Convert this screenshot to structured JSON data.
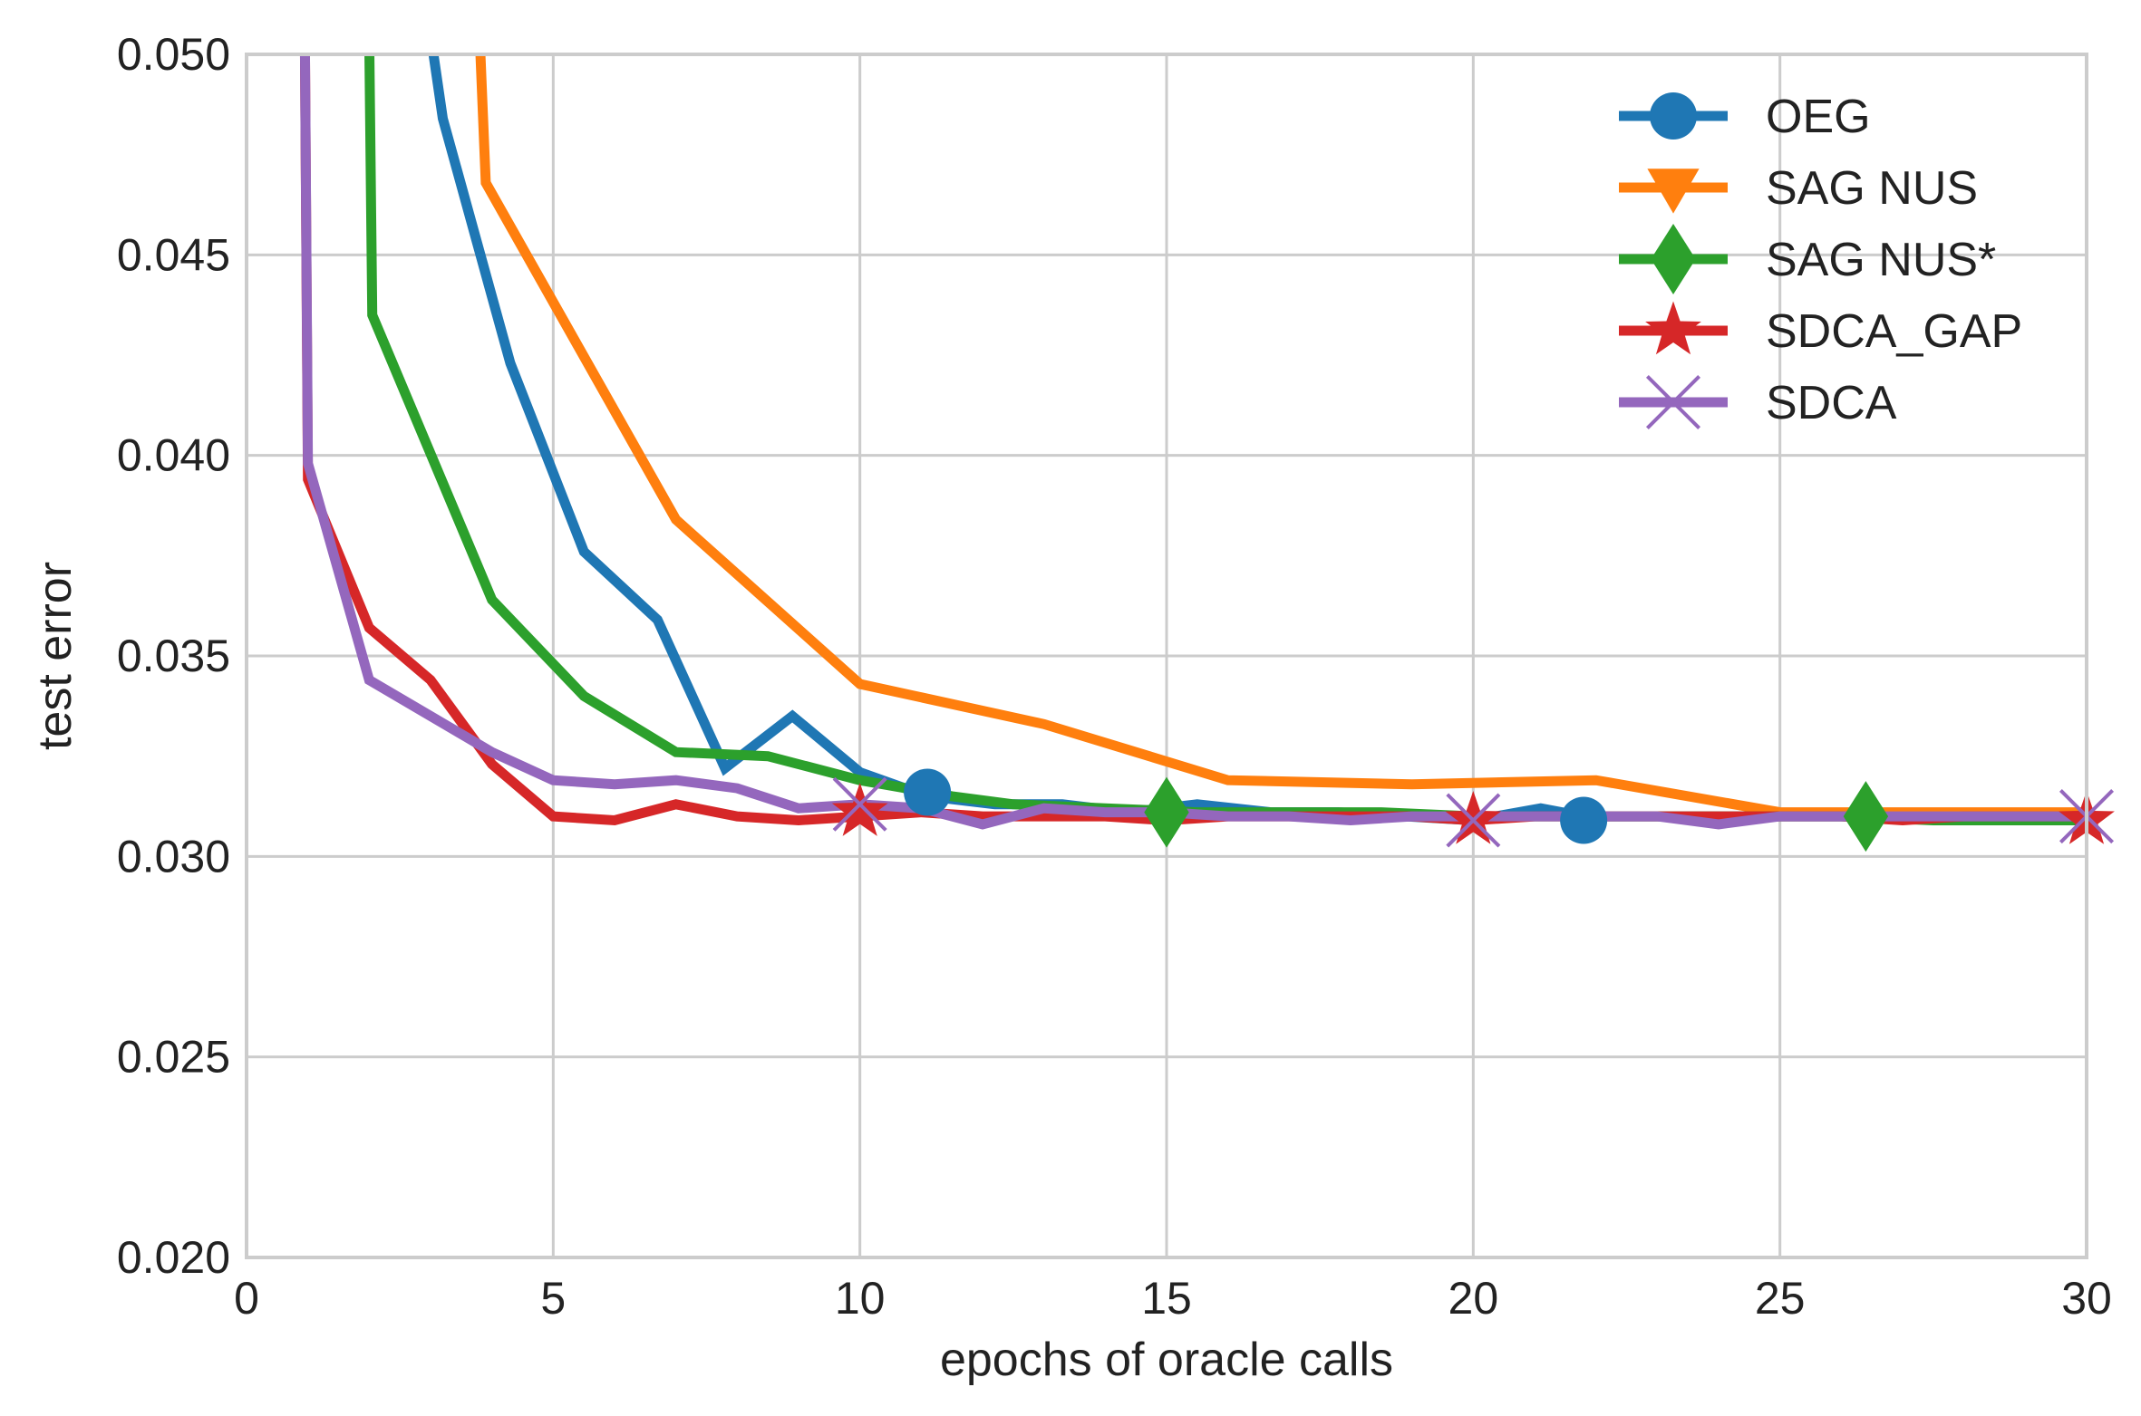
{
  "chart_data": {
    "type": "line",
    "title": "",
    "xlabel": "epochs of oracle calls",
    "ylabel": "test error",
    "xlim": [
      0,
      30
    ],
    "ylim": [
      0.02,
      0.05
    ],
    "xticks": [
      0,
      5,
      10,
      15,
      20,
      25,
      30
    ],
    "yticks": [
      0.02,
      0.025,
      0.03,
      0.035,
      0.04,
      0.045,
      0.05
    ],
    "xtick_labels": [
      "0",
      "5",
      "10",
      "15",
      "20",
      "25",
      "30"
    ],
    "ytick_labels": [
      "0.020",
      "0.025",
      "0.030",
      "0.035",
      "0.040",
      "0.045",
      "0.050"
    ],
    "grid": true,
    "legend_position": "top-right",
    "series": [
      {
        "name": "OEG",
        "color": "#1f77b4",
        "marker": "circle",
        "x": [
          3.0,
          3.2,
          4.3,
          5.5,
          6.7,
          7.8,
          8.9,
          10.0,
          11.1,
          12.2,
          13.3,
          14.4,
          15.5,
          16.7,
          17.8,
          18.9,
          20.0,
          21.1,
          21.8,
          23.3,
          24.4,
          25.5,
          26.6,
          27.7,
          28.8,
          30.0
        ],
        "y": [
          0.0505,
          0.0484,
          0.0423,
          0.0376,
          0.0359,
          0.0322,
          0.0335,
          0.0321,
          0.0315,
          0.0313,
          0.0313,
          0.0311,
          0.0313,
          0.0311,
          0.0311,
          0.031,
          0.0309,
          0.0312,
          0.031,
          0.031,
          0.031,
          0.031,
          0.031,
          0.0309,
          0.0309,
          0.0309
        ],
        "markers_at": [
          [
            11.1,
            0.0316
          ],
          [
            21.8,
            0.0309
          ]
        ]
      },
      {
        "name": "SAG NUS",
        "color": "#ff7f0e",
        "marker": "triangle-down",
        "x": [
          3.8,
          3.9,
          7.0,
          10.0,
          13.0,
          16.0,
          19.0,
          22.0,
          25.0,
          28.0,
          30.0
        ],
        "y": [
          0.0505,
          0.0468,
          0.0384,
          0.0343,
          0.0333,
          0.0319,
          0.0318,
          0.0319,
          0.0311,
          0.0311,
          0.0311
        ],
        "markers_at": []
      },
      {
        "name": "SAG NUS*",
        "color": "#2ca02c",
        "marker": "diamond",
        "x": [
          2.0,
          2.05,
          4.0,
          5.5,
          7.0,
          8.5,
          10.0,
          11.5,
          12.5,
          14.0,
          15.5,
          17.0,
          18.5,
          20.0,
          21.5,
          23.0,
          24.5,
          26.0,
          27.5,
          29.0,
          30.0
        ],
        "y": [
          0.0505,
          0.0435,
          0.0364,
          0.034,
          0.0326,
          0.0325,
          0.0319,
          0.0315,
          0.0313,
          0.0312,
          0.0311,
          0.0311,
          0.0311,
          0.031,
          0.031,
          0.031,
          0.031,
          0.031,
          0.0309,
          0.0309,
          0.0309
        ],
        "markers_at": [
          [
            15.0,
            0.0311
          ],
          [
            26.4,
            0.031
          ]
        ]
      },
      {
        "name": "SDCA_GAP",
        "color": "#d62728",
        "marker": "star",
        "x": [
          0.95,
          1.0,
          2.0,
          3.0,
          4.0,
          5.0,
          6.0,
          7.0,
          8.0,
          9.0,
          10.0,
          11.0,
          12.0,
          13.0,
          14.0,
          15.0,
          16.0,
          17.0,
          18.0,
          19.0,
          20.0,
          21.0,
          22.0,
          23.0,
          24.0,
          25.0,
          26.0,
          27.0,
          28.0,
          29.0,
          30.0
        ],
        "y": [
          0.0505,
          0.0394,
          0.0357,
          0.0344,
          0.0323,
          0.031,
          0.0309,
          0.0313,
          0.031,
          0.0309,
          0.031,
          0.0311,
          0.031,
          0.031,
          0.031,
          0.0309,
          0.031,
          0.031,
          0.031,
          0.031,
          0.0309,
          0.031,
          0.031,
          0.031,
          0.031,
          0.031,
          0.031,
          0.0309,
          0.031,
          0.031,
          0.031
        ],
        "markers_at": [
          [
            10.0,
            0.0311
          ],
          [
            20.0,
            0.0309
          ],
          [
            30.0,
            0.0309
          ]
        ]
      },
      {
        "name": "SDCA",
        "color": "#9467bd",
        "marker": "x",
        "x": [
          0.95,
          1.0,
          2.0,
          3.0,
          4.0,
          5.0,
          6.0,
          7.0,
          8.0,
          9.0,
          10.0,
          11.0,
          12.0,
          13.0,
          14.0,
          15.0,
          16.0,
          17.0,
          18.0,
          19.0,
          20.0,
          21.0,
          22.0,
          23.0,
          24.0,
          25.0,
          26.0,
          27.0,
          28.0,
          29.0,
          30.0
        ],
        "y": [
          0.0505,
          0.0398,
          0.0344,
          0.0335,
          0.0326,
          0.0319,
          0.0318,
          0.0319,
          0.0317,
          0.0312,
          0.0313,
          0.0312,
          0.0308,
          0.0312,
          0.0311,
          0.0311,
          0.031,
          0.031,
          0.0309,
          0.031,
          0.031,
          0.031,
          0.031,
          0.031,
          0.0308,
          0.031,
          0.031,
          0.031,
          0.031,
          0.031,
          0.031
        ],
        "markers_at": [
          [
            10.0,
            0.0313
          ],
          [
            20.0,
            0.0309
          ],
          [
            30.0,
            0.031
          ]
        ]
      }
    ]
  }
}
